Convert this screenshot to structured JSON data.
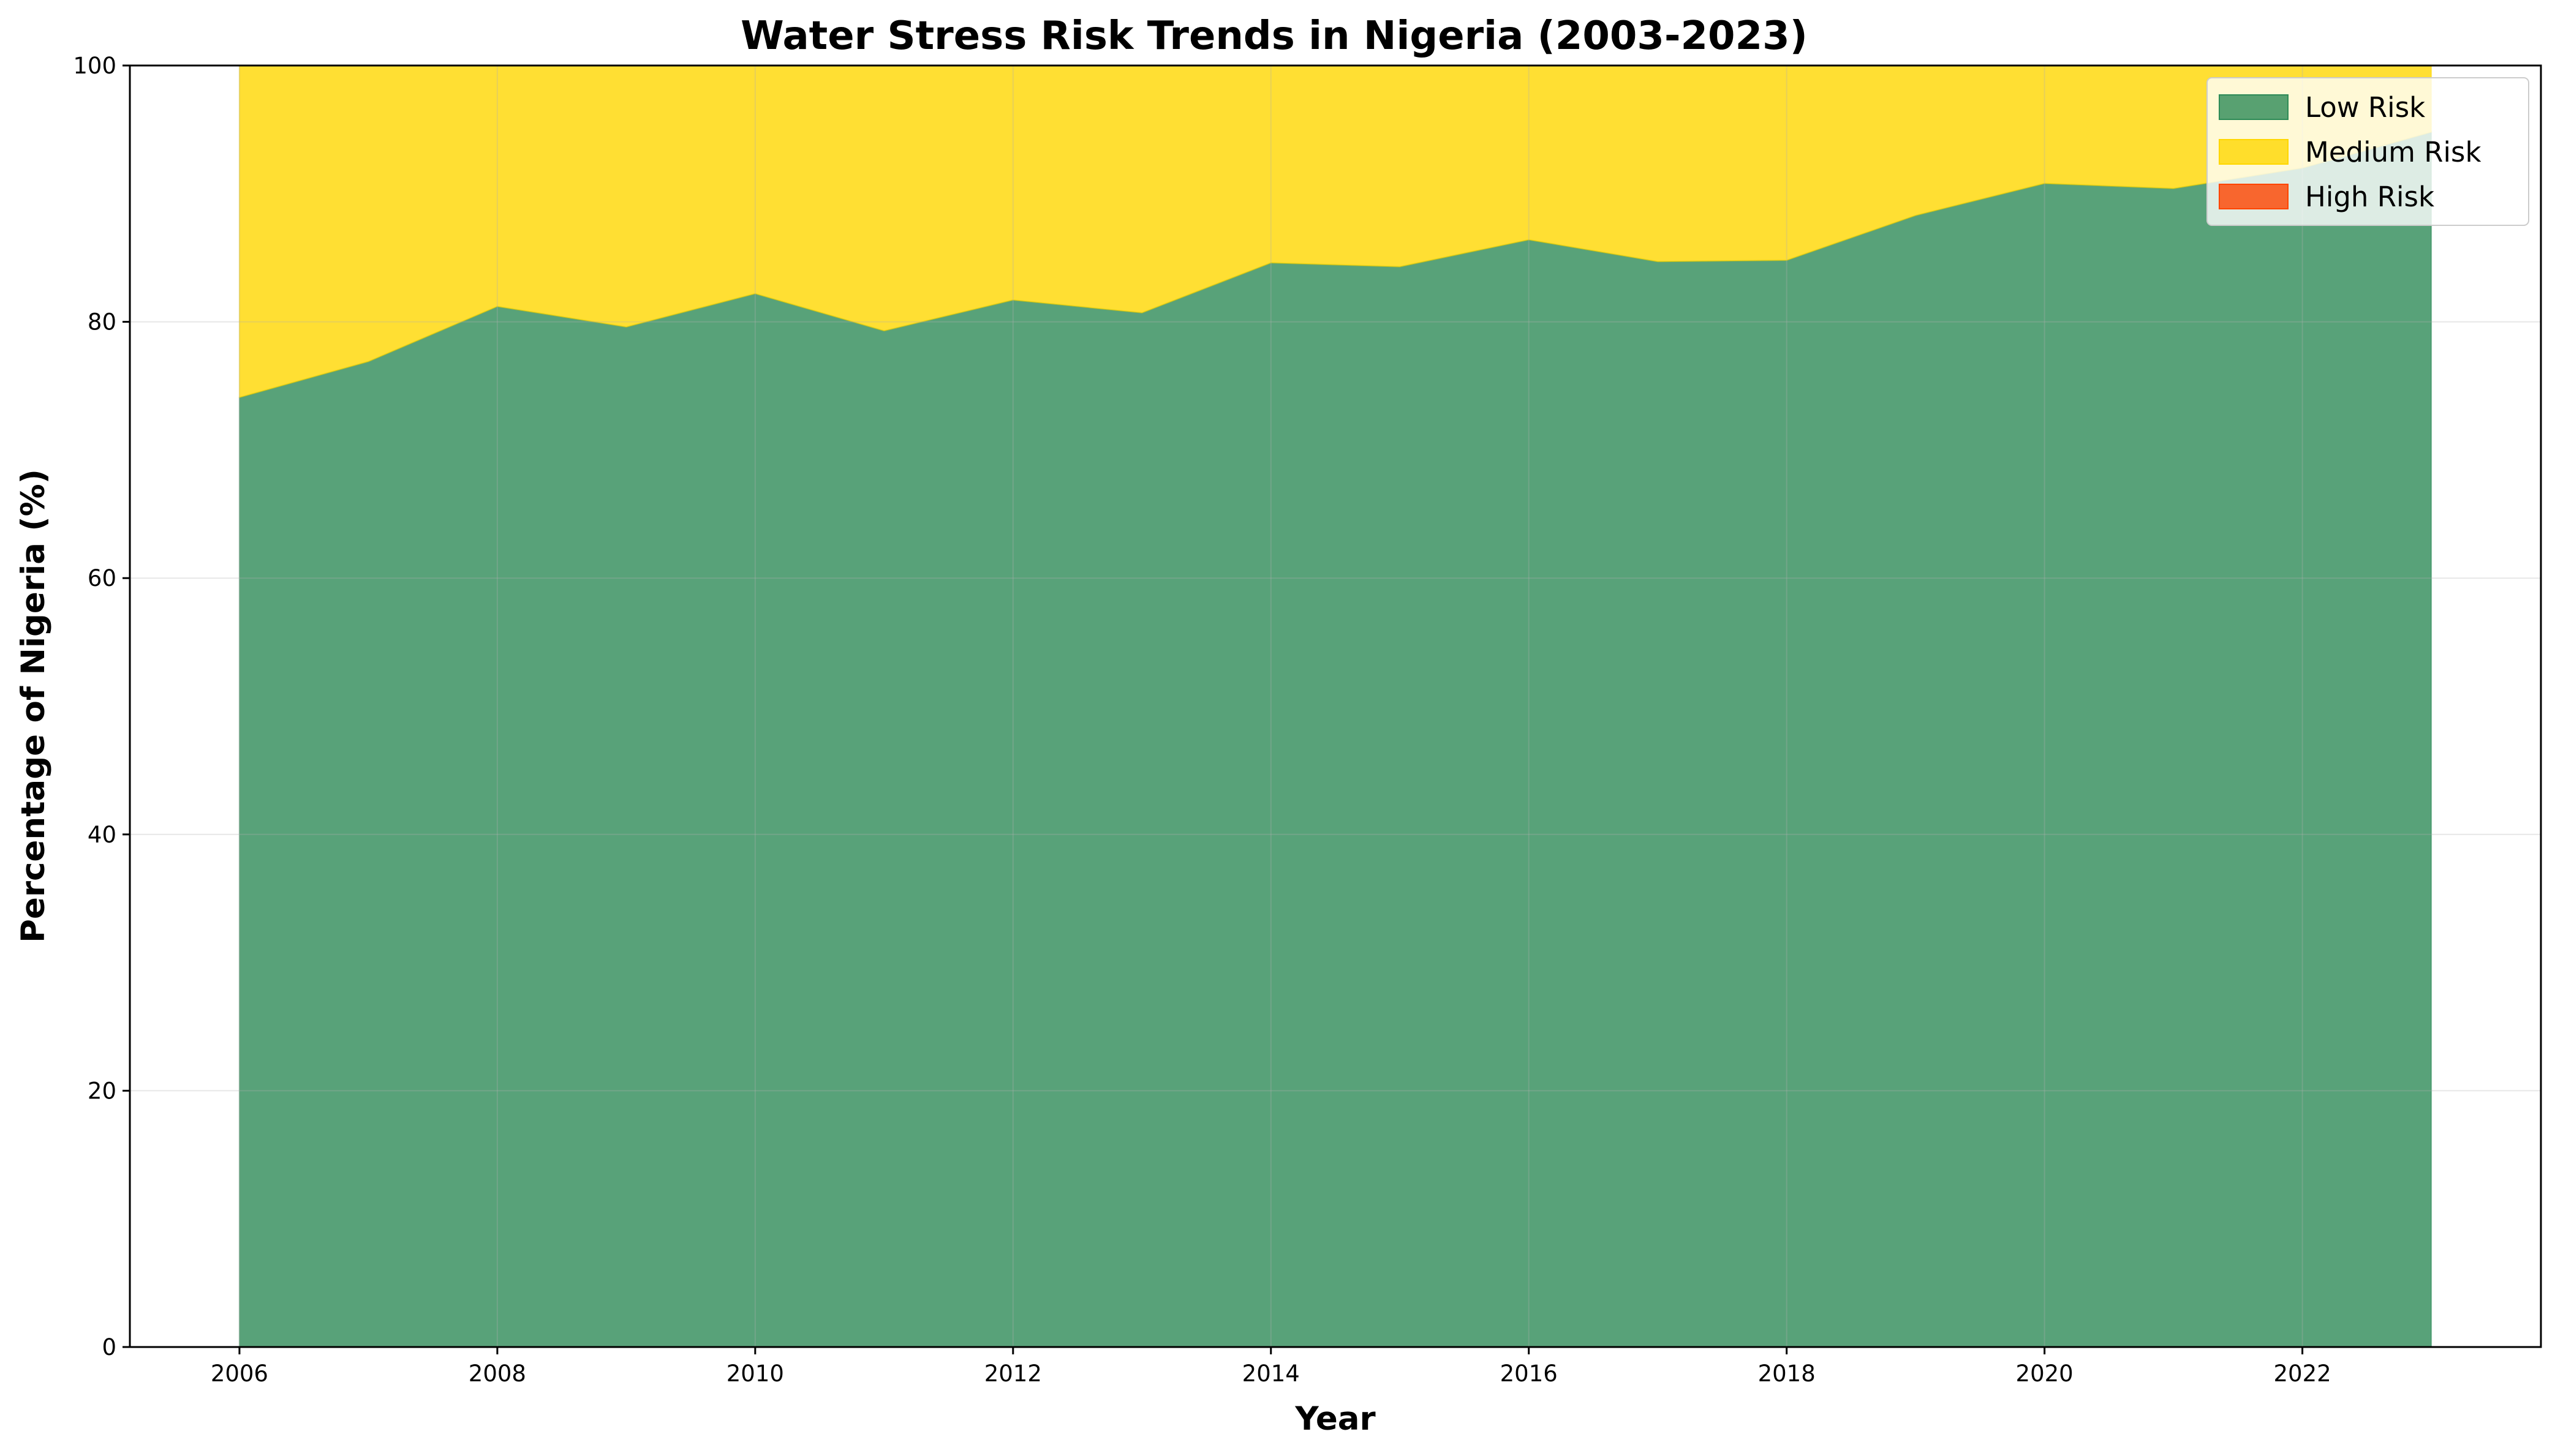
{
  "chart_data": {
    "type": "area",
    "stacked": true,
    "title": "Water Stress Risk Trends in Nigeria (2003-2023)",
    "xlabel": "Year",
    "ylabel": "Percentage of Nigeria (%)",
    "xlim": [
      2005.15,
      2023.85
    ],
    "ylim": [
      0,
      100
    ],
    "x_ticks": [
      2006,
      2008,
      2010,
      2012,
      2014,
      2016,
      2018,
      2020,
      2022
    ],
    "y_ticks": [
      0,
      20,
      40,
      60,
      80,
      100
    ],
    "grid": true,
    "legend_position": "top-right",
    "x": [
      2006,
      2007,
      2008,
      2009,
      2010,
      2011,
      2012,
      2013,
      2014,
      2015,
      2016,
      2017,
      2018,
      2019,
      2020,
      2021,
      2022,
      2023
    ],
    "series": [
      {
        "name": "Low Risk",
        "color": "#2E8B57",
        "values": [
          74.1,
          76.9,
          81.2,
          79.6,
          82.2,
          79.3,
          81.7,
          80.7,
          84.6,
          84.3,
          86.4,
          84.7,
          84.8,
          88.3,
          90.8,
          90.4,
          92.0,
          94.8
        ]
      },
      {
        "name": "Medium Risk",
        "color": "#FFD700",
        "values": [
          25.9,
          23.1,
          18.8,
          20.4,
          17.8,
          20.7,
          18.3,
          19.3,
          15.4,
          15.7,
          13.6,
          15.3,
          15.2,
          11.7,
          9.2,
          9.6,
          8.0,
          5.2
        ]
      },
      {
        "name": "High Risk",
        "color": "#FF4500",
        "values": [
          0,
          0,
          0,
          0,
          0,
          0,
          0,
          0,
          0,
          0,
          0,
          0,
          0,
          0,
          0,
          0,
          0,
          0
        ]
      }
    ]
  }
}
